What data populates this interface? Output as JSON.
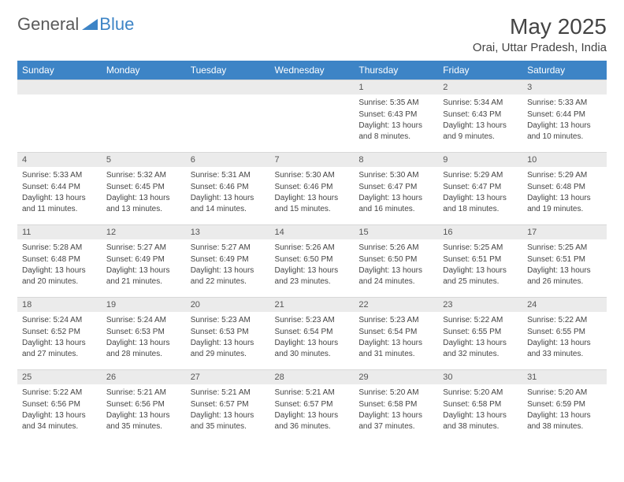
{
  "logo": {
    "general": "General",
    "blue": "Blue"
  },
  "title": "May 2025",
  "location": "Orai, Uttar Pradesh, India",
  "colors": {
    "header_bg": "#3d84c6",
    "header_text": "#ffffff",
    "daynum_bg": "#ebebeb",
    "text": "#444444",
    "logo_gray": "#5a5a5a",
    "logo_blue": "#3d84c6"
  },
  "day_headers": [
    "Sunday",
    "Monday",
    "Tuesday",
    "Wednesday",
    "Thursday",
    "Friday",
    "Saturday"
  ],
  "weeks": [
    [
      {
        "n": "",
        "sr": "",
        "ss": "",
        "dl": ""
      },
      {
        "n": "",
        "sr": "",
        "ss": "",
        "dl": ""
      },
      {
        "n": "",
        "sr": "",
        "ss": "",
        "dl": ""
      },
      {
        "n": "",
        "sr": "",
        "ss": "",
        "dl": ""
      },
      {
        "n": "1",
        "sr": "Sunrise: 5:35 AM",
        "ss": "Sunset: 6:43 PM",
        "dl": "Daylight: 13 hours and 8 minutes."
      },
      {
        "n": "2",
        "sr": "Sunrise: 5:34 AM",
        "ss": "Sunset: 6:43 PM",
        "dl": "Daylight: 13 hours and 9 minutes."
      },
      {
        "n": "3",
        "sr": "Sunrise: 5:33 AM",
        "ss": "Sunset: 6:44 PM",
        "dl": "Daylight: 13 hours and 10 minutes."
      }
    ],
    [
      {
        "n": "4",
        "sr": "Sunrise: 5:33 AM",
        "ss": "Sunset: 6:44 PM",
        "dl": "Daylight: 13 hours and 11 minutes."
      },
      {
        "n": "5",
        "sr": "Sunrise: 5:32 AM",
        "ss": "Sunset: 6:45 PM",
        "dl": "Daylight: 13 hours and 13 minutes."
      },
      {
        "n": "6",
        "sr": "Sunrise: 5:31 AM",
        "ss": "Sunset: 6:46 PM",
        "dl": "Daylight: 13 hours and 14 minutes."
      },
      {
        "n": "7",
        "sr": "Sunrise: 5:30 AM",
        "ss": "Sunset: 6:46 PM",
        "dl": "Daylight: 13 hours and 15 minutes."
      },
      {
        "n": "8",
        "sr": "Sunrise: 5:30 AM",
        "ss": "Sunset: 6:47 PM",
        "dl": "Daylight: 13 hours and 16 minutes."
      },
      {
        "n": "9",
        "sr": "Sunrise: 5:29 AM",
        "ss": "Sunset: 6:47 PM",
        "dl": "Daylight: 13 hours and 18 minutes."
      },
      {
        "n": "10",
        "sr": "Sunrise: 5:29 AM",
        "ss": "Sunset: 6:48 PM",
        "dl": "Daylight: 13 hours and 19 minutes."
      }
    ],
    [
      {
        "n": "11",
        "sr": "Sunrise: 5:28 AM",
        "ss": "Sunset: 6:48 PM",
        "dl": "Daylight: 13 hours and 20 minutes."
      },
      {
        "n": "12",
        "sr": "Sunrise: 5:27 AM",
        "ss": "Sunset: 6:49 PM",
        "dl": "Daylight: 13 hours and 21 minutes."
      },
      {
        "n": "13",
        "sr": "Sunrise: 5:27 AM",
        "ss": "Sunset: 6:49 PM",
        "dl": "Daylight: 13 hours and 22 minutes."
      },
      {
        "n": "14",
        "sr": "Sunrise: 5:26 AM",
        "ss": "Sunset: 6:50 PM",
        "dl": "Daylight: 13 hours and 23 minutes."
      },
      {
        "n": "15",
        "sr": "Sunrise: 5:26 AM",
        "ss": "Sunset: 6:50 PM",
        "dl": "Daylight: 13 hours and 24 minutes."
      },
      {
        "n": "16",
        "sr": "Sunrise: 5:25 AM",
        "ss": "Sunset: 6:51 PM",
        "dl": "Daylight: 13 hours and 25 minutes."
      },
      {
        "n": "17",
        "sr": "Sunrise: 5:25 AM",
        "ss": "Sunset: 6:51 PM",
        "dl": "Daylight: 13 hours and 26 minutes."
      }
    ],
    [
      {
        "n": "18",
        "sr": "Sunrise: 5:24 AM",
        "ss": "Sunset: 6:52 PM",
        "dl": "Daylight: 13 hours and 27 minutes."
      },
      {
        "n": "19",
        "sr": "Sunrise: 5:24 AM",
        "ss": "Sunset: 6:53 PM",
        "dl": "Daylight: 13 hours and 28 minutes."
      },
      {
        "n": "20",
        "sr": "Sunrise: 5:23 AM",
        "ss": "Sunset: 6:53 PM",
        "dl": "Daylight: 13 hours and 29 minutes."
      },
      {
        "n": "21",
        "sr": "Sunrise: 5:23 AM",
        "ss": "Sunset: 6:54 PM",
        "dl": "Daylight: 13 hours and 30 minutes."
      },
      {
        "n": "22",
        "sr": "Sunrise: 5:23 AM",
        "ss": "Sunset: 6:54 PM",
        "dl": "Daylight: 13 hours and 31 minutes."
      },
      {
        "n": "23",
        "sr": "Sunrise: 5:22 AM",
        "ss": "Sunset: 6:55 PM",
        "dl": "Daylight: 13 hours and 32 minutes."
      },
      {
        "n": "24",
        "sr": "Sunrise: 5:22 AM",
        "ss": "Sunset: 6:55 PM",
        "dl": "Daylight: 13 hours and 33 minutes."
      }
    ],
    [
      {
        "n": "25",
        "sr": "Sunrise: 5:22 AM",
        "ss": "Sunset: 6:56 PM",
        "dl": "Daylight: 13 hours and 34 minutes."
      },
      {
        "n": "26",
        "sr": "Sunrise: 5:21 AM",
        "ss": "Sunset: 6:56 PM",
        "dl": "Daylight: 13 hours and 35 minutes."
      },
      {
        "n": "27",
        "sr": "Sunrise: 5:21 AM",
        "ss": "Sunset: 6:57 PM",
        "dl": "Daylight: 13 hours and 35 minutes."
      },
      {
        "n": "28",
        "sr": "Sunrise: 5:21 AM",
        "ss": "Sunset: 6:57 PM",
        "dl": "Daylight: 13 hours and 36 minutes."
      },
      {
        "n": "29",
        "sr": "Sunrise: 5:20 AM",
        "ss": "Sunset: 6:58 PM",
        "dl": "Daylight: 13 hours and 37 minutes."
      },
      {
        "n": "30",
        "sr": "Sunrise: 5:20 AM",
        "ss": "Sunset: 6:58 PM",
        "dl": "Daylight: 13 hours and 38 minutes."
      },
      {
        "n": "31",
        "sr": "Sunrise: 5:20 AM",
        "ss": "Sunset: 6:59 PM",
        "dl": "Daylight: 13 hours and 38 minutes."
      }
    ]
  ]
}
